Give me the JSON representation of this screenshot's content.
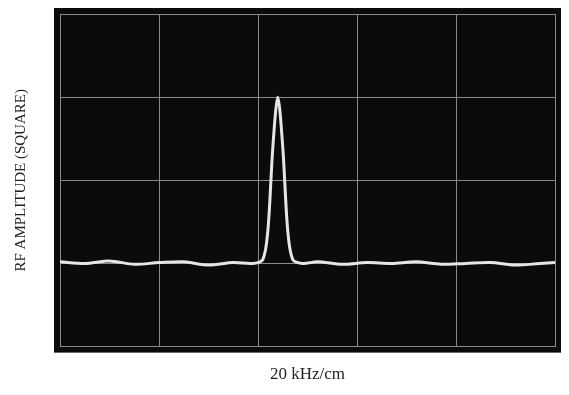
{
  "chart_data": {
    "type": "line",
    "x_label": "20 kHz/cm",
    "y_label": "RF AMPLITUDE (SQUARE)",
    "x": [
      0,
      0.25,
      0.5,
      0.75,
      1,
      1.25,
      1.5,
      1.75,
      1.95,
      2.05,
      2.1,
      2.15,
      2.2,
      2.25,
      2.3,
      2.35,
      2.45,
      2.6,
      2.85,
      3.1,
      3.35,
      3.6,
      3.85,
      4.1,
      4.35,
      4.6,
      4.85,
      5
    ],
    "values": [
      1.02,
      1.0,
      1.03,
      0.99,
      1.01,
      1.02,
      0.98,
      1.01,
      1.0,
      1.05,
      1.4,
      2.4,
      3.0,
      2.4,
      1.4,
      1.05,
      1.0,
      1.02,
      0.99,
      1.01,
      1.0,
      1.02,
      0.99,
      1.0,
      1.01,
      0.98,
      1.0,
      1.01
    ],
    "color": "#e6e6e6",
    "xlim": [
      0,
      5
    ],
    "xticks": [
      0,
      1,
      2,
      3,
      4,
      5
    ],
    "ylim": [
      0,
      4
    ],
    "yticks": [
      0,
      1,
      2,
      3,
      4
    ],
    "grid": true,
    "tick_labels": false
  }
}
